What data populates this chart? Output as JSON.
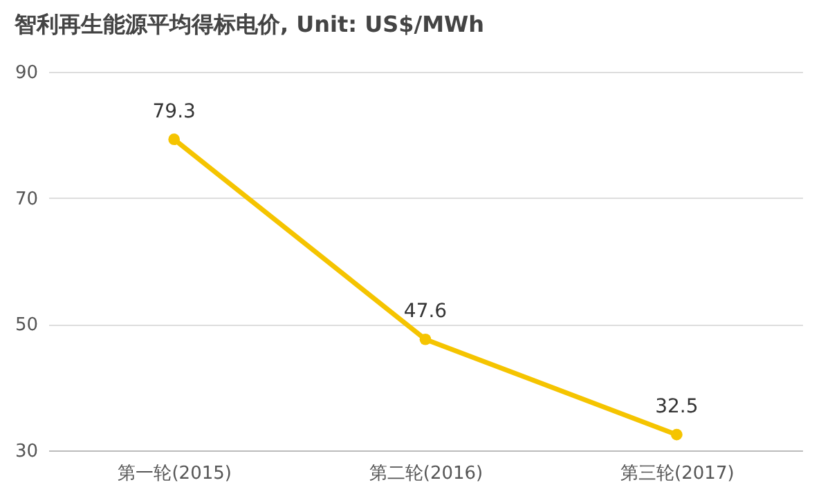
{
  "chart_data": {
    "type": "line",
    "title": "智利再生能源平均得标电价, Unit: US$/MWh",
    "categories": [
      "第一轮(2015)",
      "第二轮(2016)",
      "第三轮(2017)"
    ],
    "series": [
      {
        "color": "#f5c400",
        "values": [
          79.3,
          47.6,
          32.5
        ]
      }
    ],
    "ylim": [
      30,
      90
    ],
    "yticks": [
      30,
      50,
      70,
      90
    ],
    "grid": "y",
    "marker": "circle",
    "line_style": "solid",
    "data_labels": true,
    "legend": false
  }
}
